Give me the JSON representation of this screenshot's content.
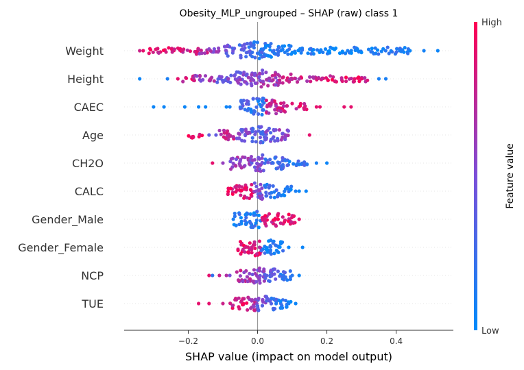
{
  "chart_data": {
    "type": "scatter",
    "title": "Obesity_MLP_ungrouped – SHAP (raw) class 1",
    "xlabel": "SHAP value (impact on model output)",
    "xlim": [
      -0.385,
      0.565
    ],
    "xticks": [
      -0.2,
      0.0,
      0.2,
      0.4
    ],
    "xtick_labels": [
      "−0.2",
      "0.0",
      "0.2",
      "0.4"
    ],
    "zero_line": 0.0,
    "colorbar": {
      "label": "Feature value",
      "high_label": "High",
      "low_label": "Low",
      "high_color": "#ff0052",
      "low_color": "#008bfb"
    },
    "features": [
      {
        "name": "Weight",
        "dense": [
          [
            -0.32,
            -0.28,
            0.85
          ],
          [
            -0.28,
            -0.24,
            0.9
          ],
          [
            -0.24,
            -0.2,
            0.85
          ],
          [
            -0.2,
            -0.17,
            0.85
          ],
          [
            -0.17,
            -0.14,
            0.7
          ],
          [
            -0.14,
            -0.1,
            0.55
          ],
          [
            -0.1,
            -0.06,
            0.4
          ],
          [
            -0.06,
            -0.02,
            0.3
          ],
          [
            -0.02,
            0.02,
            0.2
          ],
          [
            0.02,
            0.06,
            0.15
          ],
          [
            0.06,
            0.1,
            0.12
          ],
          [
            0.1,
            0.16,
            0.1
          ],
          [
            0.16,
            0.22,
            0.08
          ],
          [
            0.22,
            0.3,
            0.07
          ],
          [
            0.32,
            0.38,
            0.1
          ],
          [
            0.38,
            0.44,
            0.12
          ]
        ],
        "sparse": [
          [
            -0.33,
            0.9
          ],
          [
            -0.34,
            0.8
          ],
          [
            0.41,
            0.1
          ],
          [
            0.44,
            0.05
          ],
          [
            0.48,
            0.08
          ],
          [
            0.52,
            0.05
          ],
          [
            0.26,
            0.1
          ],
          [
            0.29,
            0.05
          ]
        ],
        "spread": 1.0
      },
      {
        "name": "Height",
        "dense": [
          [
            -0.22,
            -0.18,
            0.8
          ],
          [
            -0.18,
            -0.12,
            0.6
          ],
          [
            -0.12,
            -0.06,
            0.5
          ],
          [
            -0.06,
            -0.02,
            0.5
          ],
          [
            -0.02,
            0.02,
            0.6
          ],
          [
            0.02,
            0.06,
            0.65
          ],
          [
            0.06,
            0.12,
            0.75
          ],
          [
            0.12,
            0.18,
            0.8
          ],
          [
            0.18,
            0.26,
            0.85
          ],
          [
            0.26,
            0.32,
            0.85
          ]
        ],
        "sparse": [
          [
            -0.34,
            0.05
          ],
          [
            -0.26,
            0.1
          ],
          [
            -0.23,
            0.9
          ],
          [
            0.35,
            0.1
          ],
          [
            0.37,
            0.1
          ],
          [
            0.28,
            0.9
          ],
          [
            0.3,
            0.9
          ]
        ],
        "spread": 0.9
      },
      {
        "name": "CAEC",
        "dense": [
          [
            -0.05,
            -0.02,
            0.3
          ],
          [
            -0.02,
            0.02,
            0.2
          ],
          [
            0.02,
            0.06,
            0.75
          ],
          [
            0.06,
            0.1,
            0.8
          ],
          [
            0.1,
            0.15,
            0.85
          ]
        ],
        "sparse": [
          [
            -0.3,
            0.05
          ],
          [
            -0.27,
            0.05
          ],
          [
            -0.21,
            0.05
          ],
          [
            -0.17,
            0.05
          ],
          [
            -0.15,
            0.05
          ],
          [
            -0.09,
            0.05
          ],
          [
            -0.08,
            0.1
          ],
          [
            0.17,
            0.9
          ],
          [
            0.18,
            0.9
          ],
          [
            0.25,
            0.9
          ],
          [
            0.27,
            0.9
          ]
        ],
        "spread": 0.9
      },
      {
        "name": "Age",
        "dense": [
          [
            -0.2,
            -0.16,
            0.9
          ],
          [
            -0.11,
            -0.06,
            0.75
          ],
          [
            -0.06,
            -0.02,
            0.5
          ],
          [
            -0.02,
            0.02,
            0.35
          ],
          [
            0.02,
            0.06,
            0.45
          ],
          [
            0.06,
            0.09,
            0.55
          ]
        ],
        "sparse": [
          [
            -0.14,
            0.4
          ],
          [
            -0.12,
            0.4
          ],
          [
            0.08,
            0.6
          ],
          [
            0.15,
            0.9
          ]
        ],
        "spread": 0.85
      },
      {
        "name": "CH2O",
        "dense": [
          [
            -0.08,
            -0.02,
            0.6
          ],
          [
            -0.02,
            0.02,
            0.5
          ],
          [
            0.02,
            0.08,
            0.3
          ],
          [
            0.08,
            0.15,
            0.2
          ]
        ],
        "sparse": [
          [
            -0.13,
            0.9
          ],
          [
            -0.1,
            0.6
          ],
          [
            0.17,
            0.1
          ],
          [
            0.2,
            0.05
          ]
        ],
        "spread": 0.85
      },
      {
        "name": "CALC",
        "dense": [
          [
            -0.09,
            -0.04,
            0.9
          ],
          [
            -0.04,
            -0.01,
            0.85
          ],
          [
            -0.01,
            0.02,
            0.5
          ],
          [
            0.02,
            0.06,
            0.2
          ],
          [
            0.06,
            0.1,
            0.1
          ]
        ],
        "sparse": [
          [
            0.11,
            0.1
          ],
          [
            0.12,
            0.05
          ],
          [
            0.14,
            0.05
          ]
        ],
        "spread": 0.85
      },
      {
        "name": "Gender_Male",
        "dense": [
          [
            -0.07,
            -0.02,
            0.12
          ],
          [
            -0.02,
            0.01,
            0.15
          ],
          [
            0.01,
            0.06,
            0.85
          ],
          [
            0.06,
            0.11,
            0.9
          ]
        ],
        "sparse": [
          [
            -0.07,
            0.1
          ],
          [
            0.12,
            0.9
          ]
        ],
        "spread": 0.9
      },
      {
        "name": "Gender_Female",
        "dense": [
          [
            -0.06,
            -0.02,
            0.9
          ],
          [
            -0.02,
            0.01,
            0.85
          ],
          [
            0.01,
            0.05,
            0.12
          ],
          [
            0.05,
            0.08,
            0.1
          ]
        ],
        "sparse": [
          [
            0.09,
            0.05
          ],
          [
            0.13,
            0.05
          ]
        ],
        "spread": 0.9
      },
      {
        "name": "NCP",
        "dense": [
          [
            -0.06,
            -0.02,
            0.7
          ],
          [
            -0.02,
            0.02,
            0.55
          ],
          [
            0.02,
            0.06,
            0.4
          ],
          [
            0.06,
            0.1,
            0.2
          ]
        ],
        "sparse": [
          [
            -0.14,
            0.9
          ],
          [
            -0.13,
            0.2
          ],
          [
            -0.11,
            0.8
          ],
          [
            -0.09,
            0.7
          ],
          [
            -0.08,
            0.5
          ],
          [
            0.1,
            0.15
          ],
          [
            0.12,
            0.05
          ]
        ],
        "spread": 0.8
      },
      {
        "name": "TUE",
        "dense": [
          [
            -0.08,
            -0.03,
            0.85
          ],
          [
            -0.03,
            0.0,
            0.7
          ],
          [
            0.0,
            0.03,
            0.45
          ],
          [
            0.03,
            0.06,
            0.25
          ],
          [
            0.06,
            0.1,
            0.1
          ]
        ],
        "sparse": [
          [
            -0.17,
            0.9
          ],
          [
            -0.14,
            0.9
          ],
          [
            -0.1,
            0.8
          ],
          [
            0.09,
            0.1
          ],
          [
            0.11,
            0.05
          ]
        ],
        "spread": 0.85
      }
    ]
  }
}
